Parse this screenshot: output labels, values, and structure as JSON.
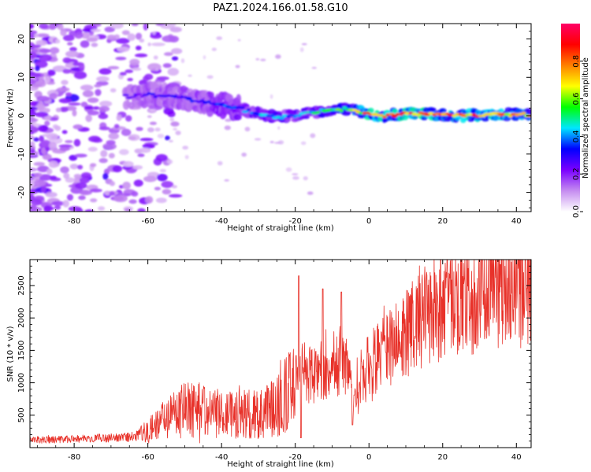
{
  "figure_title": "PAZ1.2024.166.01.58.G10",
  "chart_data": [
    {
      "type": "heatmap",
      "xlabel": "Height of straight line (km)",
      "ylabel": "Frequency (Hz)",
      "xlim": [
        -92,
        44
      ],
      "ylim": [
        -25,
        24
      ],
      "x_ticks": [
        -80,
        -60,
        -40,
        -20,
        0,
        20,
        40
      ],
      "y_ticks": [
        -20,
        -10,
        0,
        10,
        20
      ],
      "grid": false,
      "colorbar": {
        "label": "Normalized spectral amplitude",
        "range": [
          0,
          1
        ],
        "ticks": [
          "0.0",
          "0.2",
          "0.4",
          "0.6",
          "0.8"
        ],
        "colormap": [
          "#ffffff",
          "#c58cf0",
          "#7a00ff",
          "#0000ff",
          "#00e6ff",
          "#00ff00",
          "#ffff00",
          "#ff8000",
          "#ff0000",
          "#ff0066"
        ]
      },
      "ridge": {
        "x": [
          -66,
          -60,
          -55,
          -50,
          -45,
          -40,
          -35,
          -30,
          -25,
          -20,
          -15,
          -10,
          -5,
          0,
          5,
          10,
          15,
          20,
          25,
          30,
          35,
          40,
          44
        ],
        "frequency": [
          5,
          5.5,
          5,
          4.5,
          3.5,
          2.8,
          1.8,
          0.5,
          -0.5,
          0,
          0.8,
          1.5,
          1.8,
          0.2,
          0,
          0.5,
          0.5,
          0.2,
          0,
          0.2,
          0.2,
          0.3,
          0.3
        ],
        "amplitude": [
          0.25,
          0.3,
          0.3,
          0.32,
          0.34,
          0.38,
          0.4,
          0.45,
          0.5,
          0.42,
          0.5,
          0.55,
          0.6,
          0.85,
          0.85,
          0.85,
          0.9,
          0.8,
          0.85,
          0.8,
          0.85,
          0.75,
          0.7
        ]
      }
    },
    {
      "type": "line",
      "xlabel": "Height of straight line (km)",
      "ylabel": "SNR (10 * v/v)",
      "xlim": [
        -92,
        44
      ],
      "ylim": [
        0,
        2900
      ],
      "x_ticks": [
        -80,
        -60,
        -40,
        -20,
        0,
        20,
        40
      ],
      "y_ticks": [
        500,
        1000,
        1500,
        2000,
        2500
      ],
      "grid": false,
      "color": "#e8322a",
      "trend": {
        "x": [
          -92,
          -80,
          -70,
          -65,
          -60,
          -55,
          -50,
          -45,
          -40,
          -35,
          -30,
          -25,
          -22,
          -18,
          -15,
          -10,
          -5,
          -4,
          0,
          5,
          10,
          15,
          20,
          25,
          30,
          35,
          40,
          44
        ],
        "y": [
          120,
          130,
          150,
          160,
          250,
          450,
          600,
          550,
          500,
          520,
          550,
          600,
          850,
          1200,
          1100,
          1300,
          1200,
          700,
          1300,
          1500,
          1750,
          2000,
          2150,
          2300,
          2400,
          2550,
          2550,
          2550
        ]
      },
      "peaks": [
        {
          "x": -19,
          "y": 2650
        },
        {
          "x": -12.5,
          "y": 2450
        },
        {
          "x": -7.5,
          "y": 2400
        },
        {
          "x": -4.5,
          "y": 350
        },
        {
          "x": -18.5,
          "y": 150
        }
      ]
    }
  ]
}
